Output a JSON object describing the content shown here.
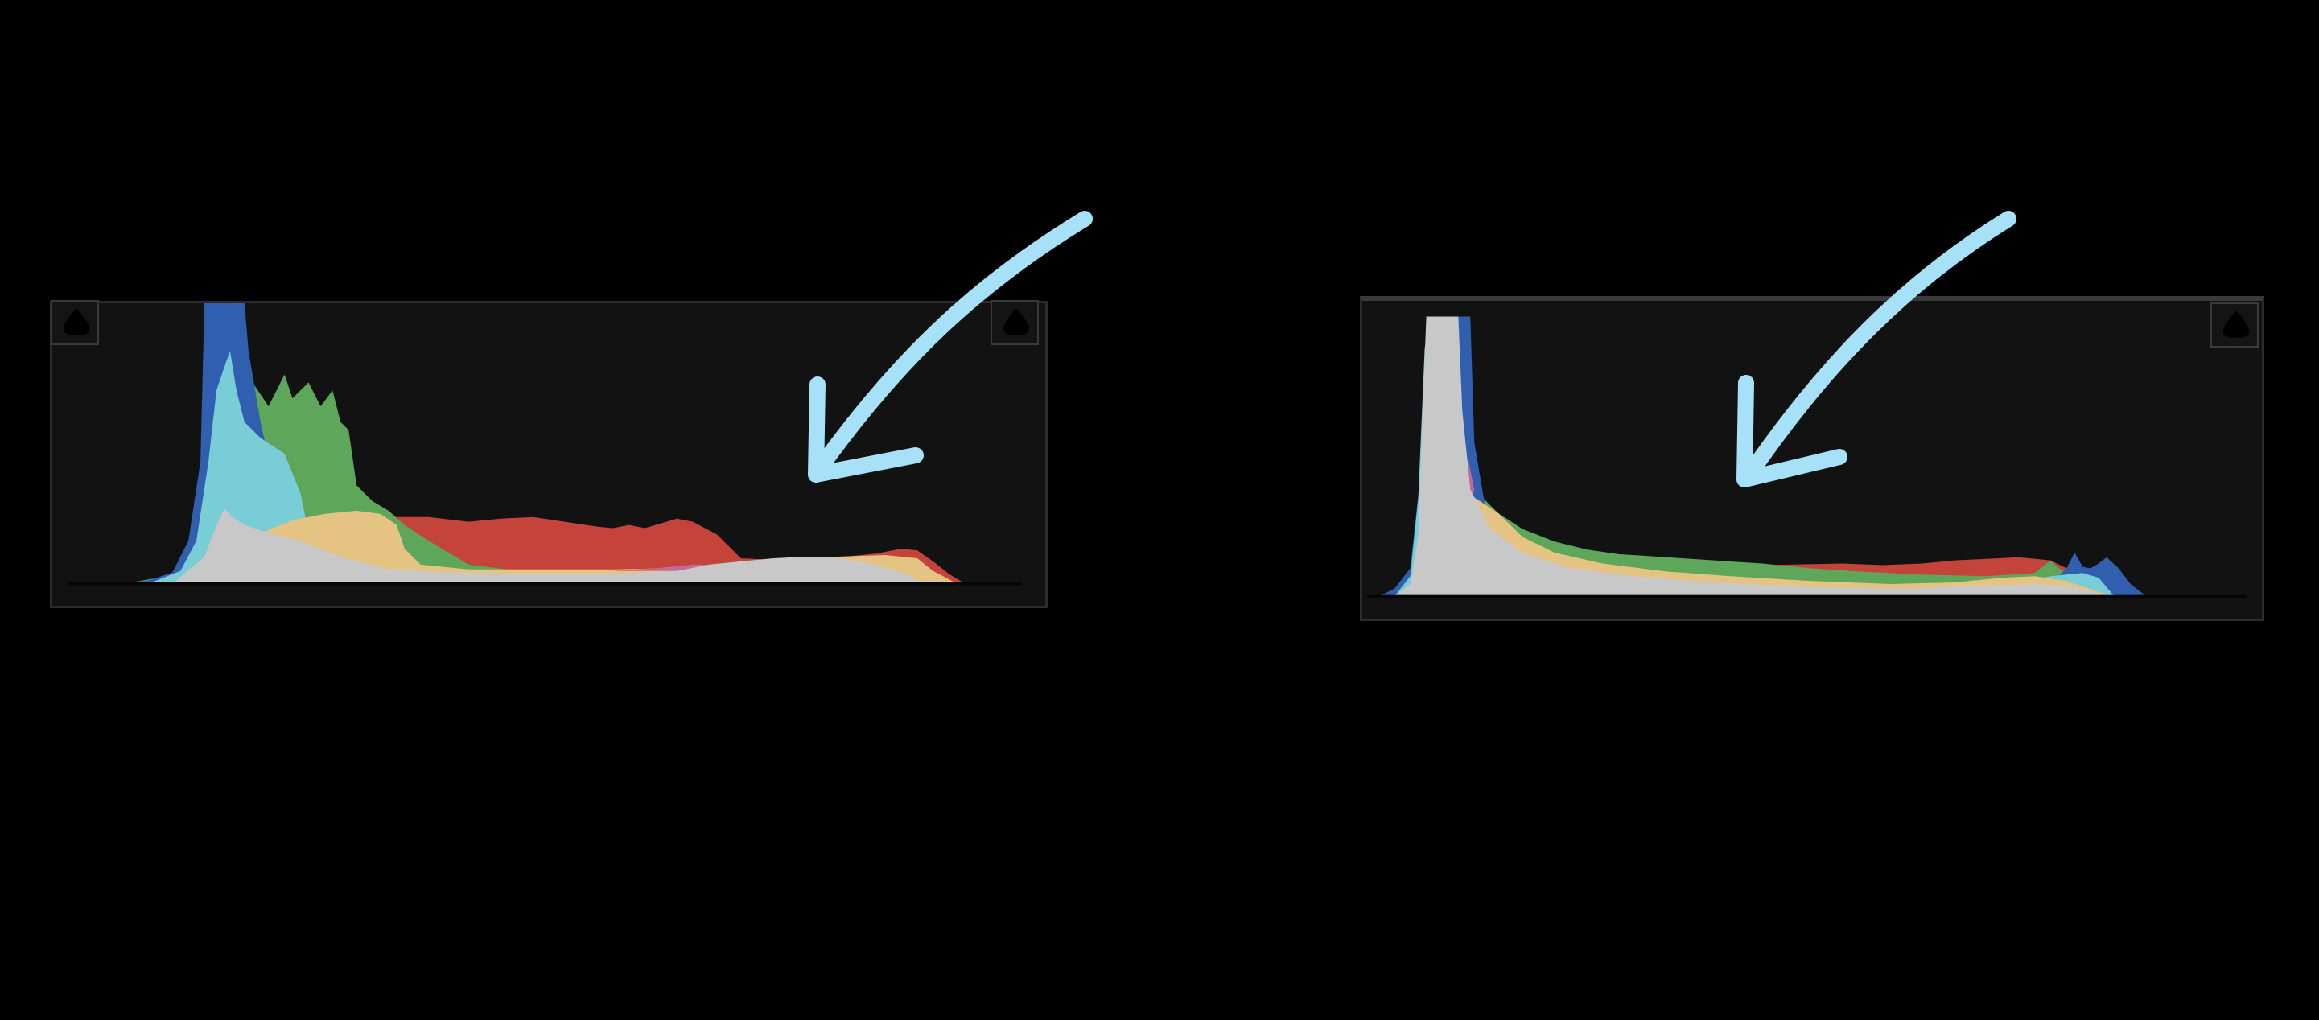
{
  "screen": {
    "background_color": "#000000",
    "panel_color": "#121212",
    "annotation_color": "#a6e1f7"
  },
  "histograms": [
    {
      "name": "left-histogram",
      "shadow_clipping_icon": "shadow-clip-warning-icon",
      "highlight_clipping_icon": "highlight-clip-warning-icon",
      "channel_colors": {
        "blue": "#2f5fae",
        "cyan": "#78cdd6",
        "green": "#5da65a",
        "yellow": "#e5c382",
        "red": "#c4443a",
        "magenta": "#c46a9a",
        "luminance": "#c8c8c8"
      }
    },
    {
      "name": "right-histogram",
      "highlight_clipping_icon": "highlight-clip-warning-icon",
      "channel_colors": {
        "blue": "#2f5fae",
        "cyan": "#78cdd6",
        "green": "#5da65a",
        "yellow": "#e5c382",
        "red": "#c4443a",
        "magenta": "#c46a9a",
        "luminance": "#c8c8c8"
      }
    }
  ],
  "annotations": [
    {
      "name": "arrow-annotation-left",
      "icon": "arrow-icon"
    },
    {
      "name": "arrow-annotation-right",
      "icon": "arrow-icon"
    }
  ]
}
